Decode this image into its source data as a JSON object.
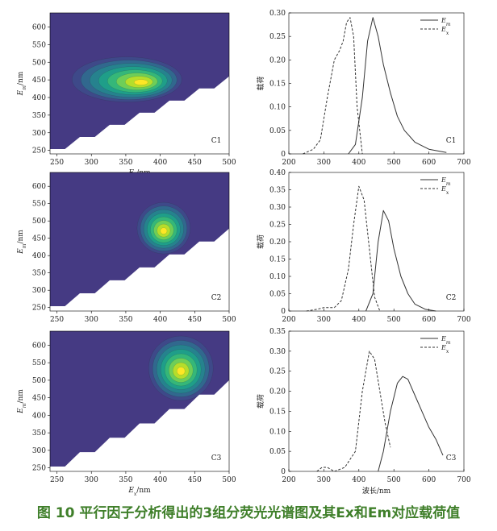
{
  "figure": {
    "caption_label": "图 10",
    "caption_text": "平行因子分析得出的3组分荧光光谱图及其Ex和Em对应载荷值",
    "colors": {
      "background": "#453a83",
      "caption": "#3f7f2a"
    }
  },
  "chart_data": [
    {
      "type": "heatmap",
      "panel": "C1",
      "xlabel": "Ex/nm",
      "ylabel": "Em/nm",
      "xticks": [
        "250",
        "300",
        "350",
        "400",
        "450",
        "500"
      ],
      "yticks": [
        "250",
        "300",
        "350",
        "400",
        "450",
        "500",
        "550",
        "600"
      ],
      "xlim": [
        240,
        500
      ],
      "ylim": [
        240,
        640
      ],
      "peak": {
        "ex": 375,
        "em": 442
      }
    },
    {
      "type": "line",
      "panel": "C1",
      "xlim": [
        200,
        700
      ],
      "ylim": [
        0,
        0.3
      ],
      "xticks": [
        "200",
        "300",
        "400",
        "500",
        "600",
        "700"
      ],
      "yticks": [
        "0",
        "0.05",
        "0.10",
        "0.15",
        "0.20",
        "0.25",
        "0.30"
      ],
      "ylabel": "载荷",
      "legend": [
        "Em",
        "Ex"
      ],
      "series": [
        {
          "name": "Em",
          "x": [
            370,
            390,
            410,
            425,
            440,
            455,
            470,
            490,
            510,
            530,
            560,
            600,
            650
          ],
          "y": [
            0,
            0.02,
            0.12,
            0.24,
            0.29,
            0.25,
            0.19,
            0.13,
            0.08,
            0.05,
            0.025,
            0.01,
            0.003
          ]
        },
        {
          "name": "Ex",
          "x": [
            240,
            270,
            290,
            310,
            330,
            345,
            355,
            365,
            375,
            385,
            395,
            410
          ],
          "y": [
            0,
            0.01,
            0.03,
            0.12,
            0.2,
            0.22,
            0.24,
            0.28,
            0.29,
            0.25,
            0.1,
            0
          ]
        }
      ]
    },
    {
      "type": "heatmap",
      "panel": "C2",
      "xlabel": "",
      "ylabel": "Em/nm",
      "xticks": [
        "250",
        "300",
        "350",
        "400",
        "450",
        "500"
      ],
      "yticks": [
        "250",
        "300",
        "350",
        "400",
        "450",
        "500",
        "550",
        "600"
      ],
      "xlim": [
        240,
        500
      ],
      "ylim": [
        240,
        640
      ],
      "peak": {
        "ex": 405,
        "em": 470
      }
    },
    {
      "type": "line",
      "panel": "C2",
      "xlim": [
        200,
        700
      ],
      "ylim": [
        0,
        0.4
      ],
      "xticks": [
        "200",
        "300",
        "400",
        "500",
        "600",
        "700"
      ],
      "yticks": [
        "0",
        "0.05",
        "0.10",
        "0.15",
        "0.20",
        "0.25",
        "0.30",
        "0.35",
        "0.40"
      ],
      "ylabel": "载荷",
      "legend": [
        "Em",
        "Ex"
      ],
      "series": [
        {
          "name": "Em",
          "x": [
            420,
            440,
            455,
            470,
            485,
            500,
            520,
            540,
            560,
            590,
            620
          ],
          "y": [
            0,
            0.05,
            0.2,
            0.29,
            0.26,
            0.18,
            0.1,
            0.05,
            0.02,
            0.005,
            0
          ]
        },
        {
          "name": "Ex",
          "x": [
            250,
            280,
            300,
            330,
            350,
            370,
            385,
            400,
            415,
            430,
            445,
            460
          ],
          "y": [
            0,
            0.005,
            0.01,
            0.01,
            0.03,
            0.12,
            0.25,
            0.36,
            0.32,
            0.18,
            0.04,
            0
          ]
        }
      ]
    },
    {
      "type": "heatmap",
      "panel": "C3",
      "xlabel": "Ex/nm",
      "ylabel": "Em/nm",
      "xticks": [
        "250",
        "300",
        "350",
        "400",
        "450",
        "500"
      ],
      "yticks": [
        "250",
        "300",
        "350",
        "400",
        "450",
        "500",
        "550",
        "600"
      ],
      "xlim": [
        240,
        500
      ],
      "ylim": [
        240,
        640
      ],
      "peak": {
        "ex": 430,
        "em": 525
      }
    },
    {
      "type": "line",
      "panel": "C3",
      "xlim": [
        200,
        700
      ],
      "ylim": [
        0,
        0.35
      ],
      "xticks": [
        "200",
        "300",
        "400",
        "500",
        "600",
        "700"
      ],
      "yticks": [
        "0",
        "0.05",
        "0.10",
        "0.15",
        "0.20",
        "0.25",
        "0.30",
        "0.35"
      ],
      "xlabel": "波长/nm",
      "ylabel": "载荷",
      "legend": [
        "Em",
        "Ex"
      ],
      "series": [
        {
          "name": "Em",
          "x": [
            455,
            470,
            490,
            510,
            525,
            540,
            560,
            580,
            600,
            620,
            640
          ],
          "y": [
            0,
            0.05,
            0.15,
            0.22,
            0.237,
            0.23,
            0.19,
            0.15,
            0.11,
            0.08,
            0.04
          ]
        },
        {
          "name": "Ex",
          "x": [
            280,
            295,
            310,
            330,
            360,
            390,
            410,
            430,
            445,
            460,
            475,
            490
          ],
          "y": [
            0,
            0.01,
            0.01,
            0,
            0.01,
            0.05,
            0.2,
            0.3,
            0.28,
            0.2,
            0.12,
            0.06
          ]
        }
      ]
    }
  ]
}
